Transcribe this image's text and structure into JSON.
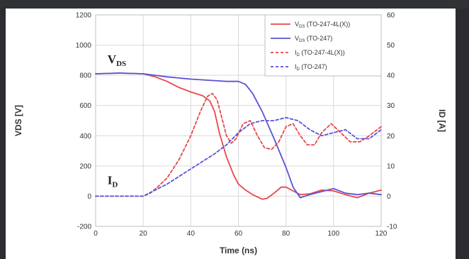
{
  "chart_data": {
    "type": "line",
    "xlabel": "Time (ns)",
    "ylabel_left": "VDS [V]",
    "ylabel_right": "ID [A]",
    "xlim": [
      0,
      120
    ],
    "ylim_left": [
      -200,
      1200
    ],
    "ylim_right": [
      -10,
      60
    ],
    "x_ticks": [
      0,
      20,
      40,
      60,
      80,
      100,
      120
    ],
    "y_left_ticks": [
      -200,
      0,
      200,
      400,
      600,
      800,
      1000,
      1200
    ],
    "y_right_ticks": [
      -10,
      0,
      10,
      20,
      30,
      40,
      50,
      60
    ],
    "grid": true,
    "legend_position": "top-right",
    "annotations": [
      {
        "text": "V",
        "sub": "DS",
        "at_x": 5,
        "at_y": 880
      },
      {
        "text": "I",
        "sub": "D",
        "at_x": 5,
        "at_y": 80
      }
    ],
    "series": [
      {
        "name": "VDS (TO-247-4L(X))",
        "name_main": "V",
        "name_sub": "DS",
        "name_rest": " (TO-247-4L(X))",
        "axis": "left",
        "color": "#e8474c",
        "dash": "solid",
        "x": [
          0,
          10,
          20,
          25,
          30,
          35,
          40,
          45,
          48,
          50,
          52,
          55,
          58,
          60,
          63,
          66,
          70,
          72,
          75,
          78,
          80,
          83,
          86,
          90,
          95,
          100,
          105,
          110,
          115,
          120
        ],
        "y": [
          810,
          815,
          810,
          790,
          760,
          720,
          690,
          665,
          630,
          560,
          420,
          260,
          140,
          80,
          40,
          10,
          -20,
          -15,
          20,
          60,
          60,
          35,
          10,
          15,
          40,
          35,
          10,
          -10,
          20,
          40
        ]
      },
      {
        "name": "VDS (TO-247)",
        "name_main": "V",
        "name_sub": "DS",
        "name_rest": " (TO-247)",
        "axis": "left",
        "color": "#5a52d6",
        "dash": "solid",
        "x": [
          0,
          10,
          20,
          25,
          30,
          40,
          50,
          55,
          60,
          63,
          66,
          70,
          75,
          80,
          83,
          86,
          90,
          95,
          100,
          105,
          110,
          115,
          120
        ],
        "y": [
          810,
          815,
          810,
          800,
          790,
          775,
          765,
          760,
          760,
          740,
          680,
          560,
          380,
          190,
          60,
          -10,
          10,
          30,
          50,
          20,
          10,
          20,
          10
        ]
      },
      {
        "name": "ID (TO-247-4L(X))",
        "name_main": "I",
        "name_sub": "D",
        "name_rest": " (TO-247-4L(X))",
        "axis": "right",
        "color": "#e8474c",
        "dash": "dashed",
        "x": [
          0,
          10,
          20,
          23,
          26,
          30,
          35,
          40,
          44,
          47,
          49,
          51,
          53,
          55,
          57,
          59,
          62,
          65,
          68,
          71,
          74,
          77,
          80,
          83,
          86,
          89,
          92,
          95,
          99,
          103,
          107,
          111,
          115,
          120
        ],
        "y": [
          0,
          0,
          0,
          1,
          3,
          6,
          12,
          20,
          28,
          33,
          34,
          32,
          26,
          20,
          17.5,
          19,
          24,
          25,
          20,
          16,
          15.5,
          18,
          23,
          24,
          20,
          17,
          17,
          21,
          24,
          21,
          18,
          18,
          20,
          23
        ]
      },
      {
        "name": "ID (TO-247)",
        "name_main": "I",
        "name_sub": "D",
        "name_rest": " (TO-247)",
        "axis": "right",
        "color": "#5a52d6",
        "dash": "dashed",
        "x": [
          0,
          10,
          20,
          25,
          30,
          40,
          50,
          55,
          60,
          65,
          70,
          75,
          80,
          85,
          90,
          95,
          100,
          105,
          110,
          115,
          120
        ],
        "y": [
          0,
          0,
          0,
          2,
          4,
          9,
          14,
          17,
          21,
          24,
          25,
          25,
          26,
          25,
          22,
          20,
          21,
          22,
          19,
          19,
          22
        ]
      }
    ]
  }
}
